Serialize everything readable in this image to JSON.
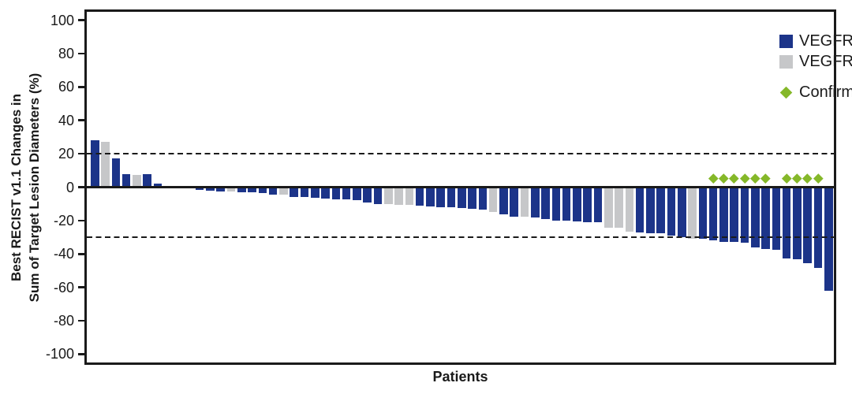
{
  "chart_data": {
    "type": "bar",
    "subtype": "waterfall",
    "title": "",
    "xlabel": "Patients",
    "ylabel_line1": "Best RECIST v1.1 Changes in",
    "ylabel_line2": "Sum of Target Lesion Diameters (%)",
    "ylim": [
      -105,
      105
    ],
    "yticks": [
      100,
      80,
      60,
      40,
      20,
      0,
      -20,
      -40,
      -60,
      -80,
      -100
    ],
    "reference_lines": [
      20,
      -30
    ],
    "grid": false,
    "legend": {
      "position": "top-right-inside",
      "items": [
        {
          "label": "VEGFRi-naïve",
          "swatch": "square",
          "color": "#1c3489"
        },
        {
          "label": "VEGFRi-treated",
          "swatch": "square",
          "color": "#c6c7c9"
        },
        {
          "label": "Confirmed PR",
          "swatch": "diamond",
          "color": "#85b829"
        }
      ]
    },
    "colors": {
      "naive": "#1c3489",
      "treated": "#c6c7c9",
      "confirmed_pr": "#85b829",
      "axis": "#1a1a1a",
      "background": "#ffffff"
    },
    "patients": {
      "count": 71,
      "values": [
        28,
        27,
        17,
        8,
        7.5,
        8,
        2,
        0,
        0,
        -0.5,
        -1.5,
        -2,
        -2.5,
        -2.5,
        -3,
        -3,
        -3.5,
        -4.5,
        -4.5,
        -6,
        -6,
        -6.5,
        -7,
        -7.5,
        -7.5,
        -8,
        -9,
        -10,
        -10,
        -10.5,
        -10.5,
        -11,
        -11.5,
        -12,
        -12,
        -12.5,
        -13,
        -13.5,
        -15,
        -16.5,
        -17.5,
        -17.5,
        -18,
        -19,
        -20,
        -20,
        -20.5,
        -21,
        -21,
        -24.5,
        -24.5,
        -26.5,
        -27,
        -27.5,
        -27.5,
        -29,
        -30,
        -31,
        -31,
        -32,
        -33,
        -33,
        -33.5,
        -36,
        -37,
        -37.5,
        -42.5,
        -43,
        -45.5,
        -48.5,
        -62
      ],
      "vegfri_treated_indices": [
        1,
        4,
        13,
        18,
        28,
        29,
        30,
        38,
        41,
        49,
        50,
        51,
        57
      ],
      "confirmed_pr_indices": [
        59,
        60,
        61,
        62,
        63,
        64,
        66,
        67,
        68,
        69
      ]
    }
  }
}
